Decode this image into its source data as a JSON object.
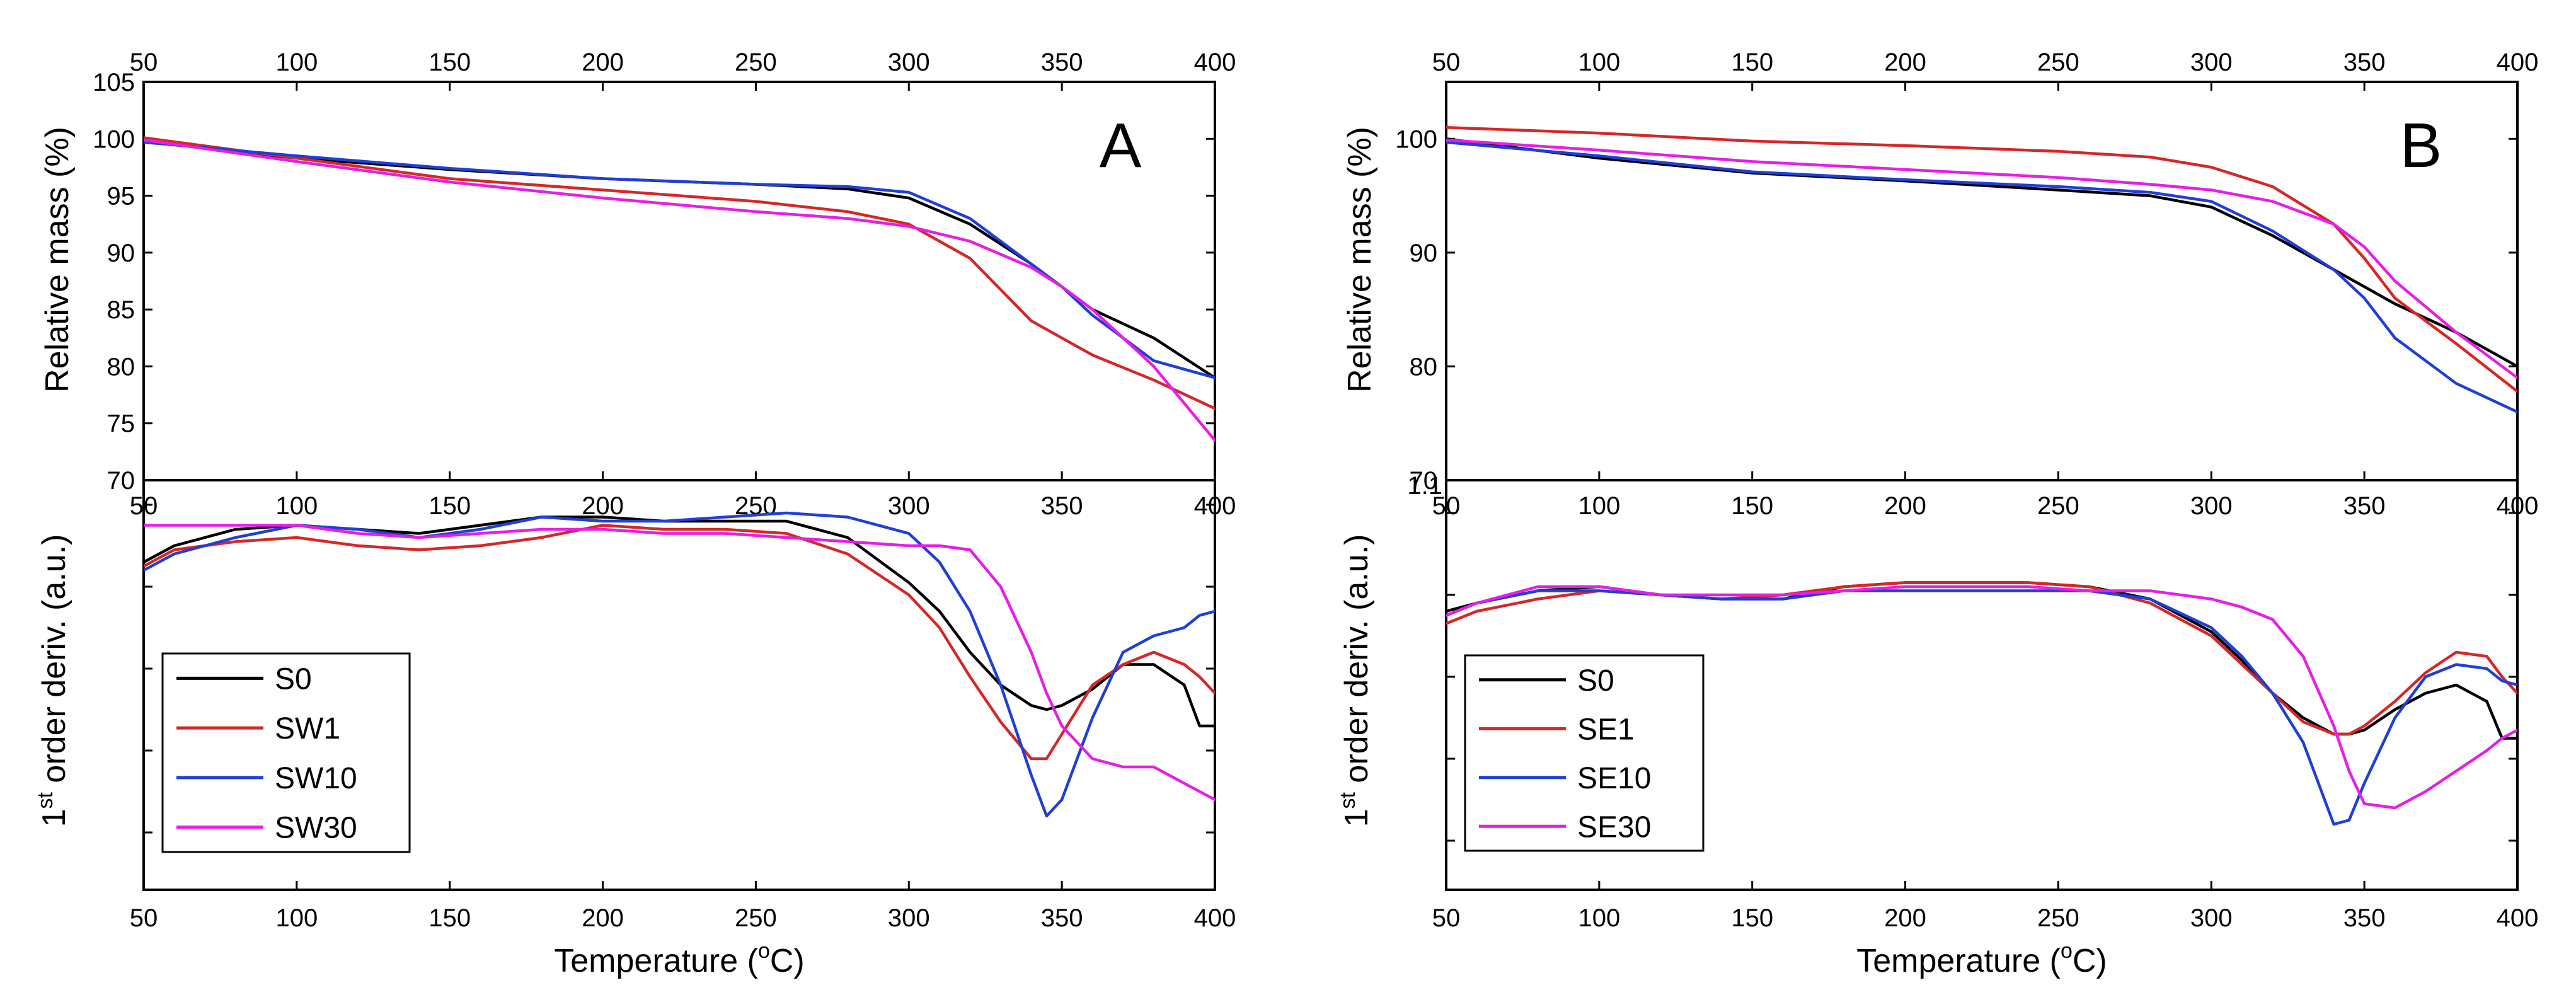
{
  "colors": {
    "S0": "#000000",
    "SW1": "#d62728",
    "SE1": "#d62728",
    "SW10": "#1f3fd6",
    "SE10": "#1f3fd6",
    "SW30": "#e61ee6",
    "SE30": "#e61ee6"
  },
  "chart_data": [
    {
      "type": "line",
      "panel": "A",
      "panel_label": "A",
      "xlabel": "Temperature (°C)",
      "xlabel_pre": "Temperature (",
      "xlabel_sup": "o",
      "xlabel_post": "C)",
      "xlim": [
        50,
        400
      ],
      "x_ticks": [
        50,
        100,
        150,
        200,
        250,
        300,
        350,
        400
      ],
      "top": {
        "ylabel": "Relative mass (%)",
        "ylim": [
          70,
          105
        ],
        "y_ticks": [
          70,
          75,
          80,
          85,
          90,
          95,
          100,
          105
        ],
        "x": [
          50,
          100,
          150,
          200,
          250,
          280,
          300,
          320,
          340,
          350,
          360,
          380,
          400
        ],
        "series": [
          {
            "name": "S0",
            "color": "#000000",
            "values": [
              99.8,
              98.3,
              97.3,
              96.5,
              96.0,
              95.6,
              94.8,
              92.5,
              89.0,
              87.0,
              85.0,
              82.5,
              79.0
            ]
          },
          {
            "name": "SW1",
            "color": "#d62728",
            "values": [
              100.1,
              98.3,
              96.5,
              95.5,
              94.5,
              93.6,
              92.5,
              89.5,
              84.0,
              82.5,
              81.0,
              78.8,
              76.3
            ]
          },
          {
            "name": "SW10",
            "color": "#1f3fd6",
            "values": [
              99.7,
              98.5,
              97.4,
              96.5,
              96.0,
              95.8,
              95.3,
              93.0,
              89.0,
              87.0,
              84.5,
              80.5,
              79.0
            ]
          },
          {
            "name": "SW30",
            "color": "#e61ee6",
            "values": [
              99.9,
              98.0,
              96.2,
              94.8,
              93.6,
              93.0,
              92.3,
              91.0,
              88.7,
              87.0,
              85.0,
              80.0,
              73.5
            ]
          }
        ]
      },
      "bottom": {
        "ylabel": "1st order deriv. (a.u.)",
        "ylabel_main": "1",
        "ylabel_sup": "st",
        "ylabel_rest": " order deriv. (a.u.)",
        "ylim": [
          0,
          100
        ],
        "y_ticks": [
          14,
          34,
          54,
          74,
          94
        ],
        "x": [
          50,
          60,
          80,
          100,
          120,
          140,
          160,
          180,
          200,
          220,
          240,
          260,
          280,
          300,
          310,
          320,
          330,
          340,
          345,
          350,
          360,
          370,
          380,
          390,
          395,
          400
        ],
        "series": [
          {
            "name": "S0",
            "color": "#000000",
            "values": [
              80,
              84,
              88,
              89,
              88,
              87,
              89,
              91,
              91,
              90,
              90,
              90,
              86,
              75,
              68,
              58,
              50,
              45,
              44,
              45,
              49,
              55,
              55,
              50,
              40,
              40
            ]
          },
          {
            "name": "SW1",
            "color": "#d62728",
            "values": [
              79,
              83,
              85,
              86,
              84,
              83,
              84,
              86,
              89,
              88,
              88,
              87,
              82,
              72,
              64,
              52,
              41,
              32,
              32,
              38,
              50,
              55,
              58,
              55,
              52,
              48
            ]
          },
          {
            "name": "SW10",
            "color": "#1f3fd6",
            "values": [
              78,
              82,
              86,
              89,
              88,
              86,
              88,
              91,
              90,
              90,
              91,
              92,
              91,
              87,
              80,
              68,
              50,
              28,
              18,
              22,
              42,
              58,
              62,
              64,
              67,
              68
            ]
          },
          {
            "name": "SW30",
            "color": "#e61ee6",
            "values": [
              89,
              89,
              89,
              89,
              87,
              86,
              87,
              88,
              88,
              87,
              87,
              86,
              85,
              84,
              84,
              83,
              74,
              58,
              48,
              40,
              32,
              30,
              30,
              26,
              24,
              22
            ]
          }
        ]
      },
      "legend": [
        "S0",
        "SW1",
        "SW10",
        "SW30"
      ]
    },
    {
      "type": "line",
      "panel": "B",
      "panel_label": "B",
      "xlabel": "Temperature (°C)",
      "xlabel_pre": "Temperature (",
      "xlabel_sup": "o",
      "xlabel_post": "C)",
      "xlim": [
        50,
        400
      ],
      "x_ticks": [
        50,
        100,
        150,
        200,
        250,
        300,
        350,
        400
      ],
      "top": {
        "ylabel": "Relative mass (%)",
        "ylim": [
          70,
          105
        ],
        "y_ticks": [
          70,
          80,
          90,
          100
        ],
        "x": [
          50,
          100,
          150,
          200,
          250,
          280,
          300,
          320,
          340,
          350,
          360,
          380,
          400
        ],
        "series": [
          {
            "name": "S0",
            "color": "#000000",
            "values": [
              100.0,
              98.3,
              97.0,
              96.3,
              95.5,
              95.0,
              94.0,
              91.5,
              88.5,
              87.0,
              85.5,
              83.0,
              80.0
            ]
          },
          {
            "name": "SE1",
            "color": "#d62728",
            "values": [
              101.0,
              100.5,
              99.8,
              99.4,
              98.9,
              98.4,
              97.5,
              95.8,
              92.5,
              89.5,
              86.0,
              82.0,
              77.8
            ]
          },
          {
            "name": "SE10",
            "color": "#1f3fd6",
            "values": [
              99.7,
              98.5,
              97.1,
              96.4,
              95.8,
              95.3,
              94.5,
              91.9,
              88.5,
              86.0,
              82.5,
              78.5,
              76.0
            ]
          },
          {
            "name": "SE30",
            "color": "#e61ee6",
            "values": [
              99.9,
              99.0,
              98.0,
              97.3,
              96.6,
              96.0,
              95.5,
              94.5,
              92.5,
              90.5,
              87.5,
              83.0,
              79.0
            ]
          }
        ]
      },
      "bottom": {
        "ylabel": "1st order deriv. (a.u.)",
        "ylabel_main": "1",
        "ylabel_sup": "st",
        "ylabel_rest": " order deriv. (a.u.)",
        "stray_label": "1.1",
        "ylim": [
          0,
          100
        ],
        "y_ticks": [
          12,
          32,
          52,
          72,
          92
        ],
        "x": [
          50,
          60,
          80,
          100,
          120,
          140,
          160,
          180,
          200,
          220,
          240,
          260,
          280,
          300,
          310,
          320,
          330,
          340,
          345,
          350,
          360,
          370,
          380,
          390,
          395,
          400
        ],
        "series": [
          {
            "name": "S0",
            "color": "#000000",
            "values": [
              68,
              70,
              73,
              74,
              72,
              71,
              71,
              74,
              75,
              75,
              75,
              74,
              71,
              63,
              56,
              48,
              42,
              38,
              38,
              39,
              44,
              48,
              50,
              46,
              37,
              37
            ]
          },
          {
            "name": "SE1",
            "color": "#d62728",
            "values": [
              65,
              68,
              71,
              73,
              72,
              71,
              72,
              74,
              75,
              75,
              75,
              74,
              70,
              62,
              55,
              48,
              41,
              38,
              38,
              40,
              46,
              53,
              58,
              57,
              52,
              48
            ]
          },
          {
            "name": "SE10",
            "color": "#1f3fd6",
            "values": [
              67,
              70,
              73,
              73,
              72,
              71,
              71,
              73,
              73,
              73,
              73,
              73,
              71,
              64,
              57,
              48,
              36,
              16,
              17,
              26,
              42,
              52,
              55,
              54,
              51,
              50
            ]
          },
          {
            "name": "SE30",
            "color": "#e61ee6",
            "values": [
              67,
              70,
              74,
              74,
              72,
              72,
              72,
              73,
              74,
              74,
              74,
              73,
              73,
              71,
              69,
              66,
              57,
              40,
              29,
              21,
              20,
              24,
              29,
              34,
              37,
              39
            ]
          }
        ]
      },
      "legend": [
        "S0",
        "SE1",
        "SE10",
        "SE30"
      ]
    }
  ]
}
